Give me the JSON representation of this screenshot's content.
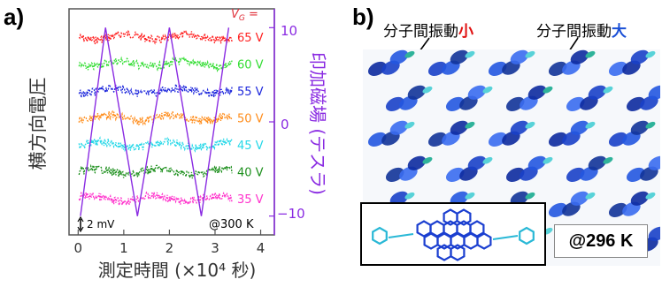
{
  "panel_a": {
    "label": "a)",
    "vg_label": "V",
    "vg_sub": "G",
    "vg_suffix": " =",
    "right_ticks": [
      "10",
      "0",
      "−10"
    ],
    "scale_bar": "2 mV",
    "temp": "@300 K",
    "colors": {
      "axis": "#555555",
      "field": "#8a2be2",
      "vg_label": "#e0303a"
    }
  },
  "panel_b": {
    "label": "b)",
    "annot_left": {
      "text": "分子間振動",
      "emph": "小"
    },
    "annot_right": {
      "text": "分子間振動",
      "emph": "大"
    },
    "temp": "@296 K"
  },
  "chart_data": {
    "type": "line",
    "xlabel": "測定時間 (×10⁴ 秒)",
    "ylabel_left": "横方向電圧",
    "ylabel_right": "印加磁場 (テスラ)",
    "x_ticks": [
      0,
      1,
      2,
      3,
      4
    ],
    "xlim": [
      -0.2,
      4.3
    ],
    "ylim_right": [
      -12,
      12
    ],
    "right_tick_values": [
      10,
      0,
      -10
    ],
    "series": [
      {
        "name": "65 V",
        "color": "#ff2020"
      },
      {
        "name": "60 V",
        "color": "#33dd33"
      },
      {
        "name": "55 V",
        "color": "#1e28dc"
      },
      {
        "name": "50 V",
        "color": "#ff8c1a"
      },
      {
        "name": "45 V",
        "color": "#25d8e8"
      },
      {
        "name": "40 V",
        "color": "#1c8f1c"
      },
      {
        "name": "35 V",
        "color": "#ff33cc"
      }
    ],
    "magnetic_field": {
      "color": "#8a2be2",
      "t": [
        0.05,
        0.6,
        1.3,
        2.0,
        2.7,
        3.3
      ],
      "B": [
        -10,
        10,
        -10,
        10,
        -10,
        10
      ]
    }
  }
}
